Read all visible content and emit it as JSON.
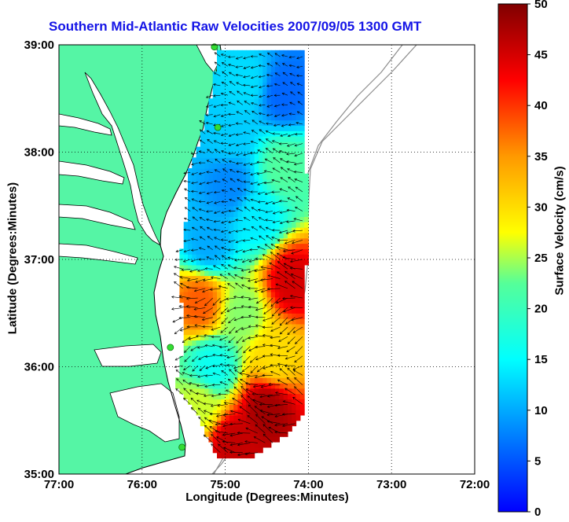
{
  "chart_data": {
    "type": "heatmap",
    "title": "Southern Mid-Atlantic Raw Velocities 2007/09/05 1300 GMT",
    "xlabel": "Longitude (Degrees:Minutes)",
    "ylabel": "Latitude (Degrees:Minutes)",
    "colorbar_label": "Surface Velocity (cm/s)",
    "xlim": [
      -77,
      -72
    ],
    "ylim": [
      35,
      39
    ],
    "x_ticks": [
      "77:00",
      "76:00",
      "75:00",
      "74:00",
      "73:00",
      "72:00"
    ],
    "y_ticks": [
      "39:00",
      "38:00",
      "37:00",
      "36:00",
      "35:00"
    ],
    "colorbar_range": [
      0,
      50
    ],
    "colorbar_ticks": [
      "0",
      "5",
      "10",
      "15",
      "20",
      "25",
      "30",
      "35",
      "40",
      "45",
      "50"
    ],
    "grid": "dotted",
    "land_color": "#55f5a5",
    "colormap": "jet",
    "sites": [
      {
        "lon": -75.13,
        "lat": 38.98
      },
      {
        "lon": -75.09,
        "lat": 38.23
      },
      {
        "lon": -75.66,
        "lat": 36.18
      },
      {
        "lon": -75.52,
        "lat": 35.25
      }
    ],
    "velocity_regions": [
      {
        "lon": -74.75,
        "lat": 38.65,
        "speed": 13
      },
      {
        "lon": -74.3,
        "lat": 38.55,
        "speed": 6
      },
      {
        "lon": -74.95,
        "lat": 38.15,
        "speed": 12
      },
      {
        "lon": -74.3,
        "lat": 37.85,
        "speed": 22
      },
      {
        "lon": -74.95,
        "lat": 37.7,
        "speed": 8
      },
      {
        "lon": -74.6,
        "lat": 37.4,
        "speed": 14
      },
      {
        "lon": -75.2,
        "lat": 37.15,
        "speed": 10
      },
      {
        "lon": -75.3,
        "lat": 36.6,
        "speed": 38
      },
      {
        "lon": -74.2,
        "lat": 36.8,
        "speed": 45
      },
      {
        "lon": -74.8,
        "lat": 36.5,
        "speed": 24
      },
      {
        "lon": -75.15,
        "lat": 36.0,
        "speed": 16
      },
      {
        "lon": -74.4,
        "lat": 36.1,
        "speed": 30
      },
      {
        "lon": -74.5,
        "lat": 35.6,
        "speed": 48
      },
      {
        "lon": -74.9,
        "lat": 35.3,
        "speed": 46
      },
      {
        "lon": -75.3,
        "lat": 35.65,
        "speed": 26
      }
    ]
  },
  "colors": {
    "title": "#1414e6",
    "land": "#55f5a5",
    "coast": "#000000",
    "sites": "#33dd33",
    "bathymetry": "#8c8c8c"
  }
}
